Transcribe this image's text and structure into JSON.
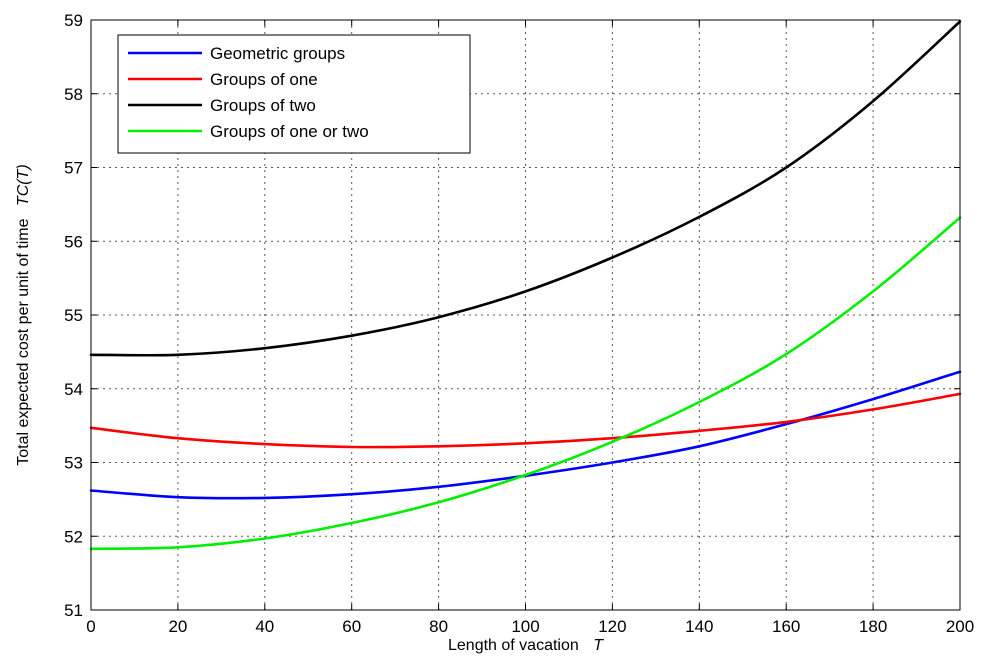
{
  "chart_data": {
    "type": "line",
    "title": "",
    "xlabel": "Length of vacation",
    "xlabel_symbol": "T",
    "ylabel": "Total expected cost per unit of time",
    "ylabel_symbol": "TC(T)",
    "xlim": [
      0,
      200
    ],
    "ylim": [
      51,
      59
    ],
    "xticks": [
      0,
      20,
      40,
      60,
      80,
      100,
      120,
      140,
      160,
      180,
      200
    ],
    "yticks": [
      51,
      52,
      53,
      54,
      55,
      56,
      57,
      58,
      59
    ],
    "grid": true,
    "legend_position": "top-left",
    "x": [
      0,
      20,
      40,
      60,
      80,
      100,
      120,
      140,
      160,
      180,
      200
    ],
    "series": [
      {
        "name": "Geometric groups",
        "color": "#0000ff",
        "values": [
          52.62,
          52.53,
          52.52,
          52.57,
          52.67,
          52.82,
          53.0,
          53.22,
          53.52,
          53.86,
          54.23
        ]
      },
      {
        "name": "Groups of one",
        "color": "#ff0000",
        "values": [
          53.47,
          53.33,
          53.25,
          53.21,
          53.22,
          53.26,
          53.33,
          53.43,
          53.55,
          53.72,
          53.93
        ]
      },
      {
        "name": "Groups of two",
        "color": "#000000",
        "values": [
          54.46,
          54.46,
          54.55,
          54.72,
          54.97,
          55.32,
          55.78,
          56.33,
          57.0,
          57.9,
          58.98
        ]
      },
      {
        "name": "Groups of one or two",
        "color": "#00ee00",
        "values": [
          51.83,
          51.85,
          51.97,
          52.18,
          52.46,
          52.83,
          53.28,
          53.82,
          54.47,
          55.32,
          56.32
        ]
      }
    ]
  }
}
